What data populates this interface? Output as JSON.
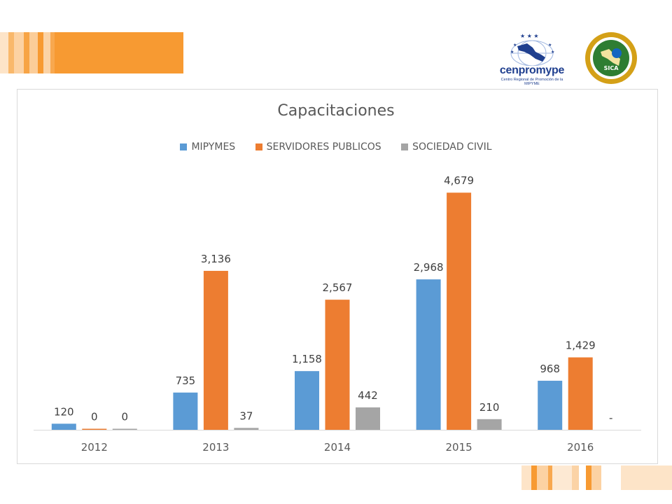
{
  "logos": {
    "cenpromype_name": "cenpromype",
    "cenpromype_subtitle": "Centro Regional de Promoción de la MIPYME",
    "sica_text": "SICA"
  },
  "colors": {
    "banner_light": "#fbd3a6",
    "banner_orange": "#f79a32",
    "mipymes": "#5b9bd5",
    "servidores": "#ed7d31",
    "sociedad": "#a5a5a5"
  },
  "chart_data": {
    "type": "bar",
    "title": "Capacitaciones",
    "legend_position": "top",
    "grid": false,
    "categories": [
      "2012",
      "2013",
      "2014",
      "2015",
      "2016"
    ],
    "ylim": [
      0,
      5000
    ],
    "series": [
      {
        "name": "MIPYMES",
        "color": "#5b9bd5",
        "values": [
          120,
          735,
          1158,
          2968,
          968
        ],
        "labels": [
          "120",
          "735",
          "1,158",
          "2,968",
          "968"
        ]
      },
      {
        "name": "SERVIDORES PUBLICOS",
        "color": "#ed7d31",
        "values": [
          0,
          3136,
          2567,
          4679,
          1429
        ],
        "labels": [
          "0",
          "3,136",
          "2,567",
          "4,679",
          "1,429"
        ]
      },
      {
        "name": "SOCIEDAD CIVIL",
        "color": "#a5a5a5",
        "values": [
          0,
          37,
          442,
          210,
          0
        ],
        "labels": [
          "0",
          "37",
          "442",
          "210",
          "-"
        ]
      }
    ]
  }
}
